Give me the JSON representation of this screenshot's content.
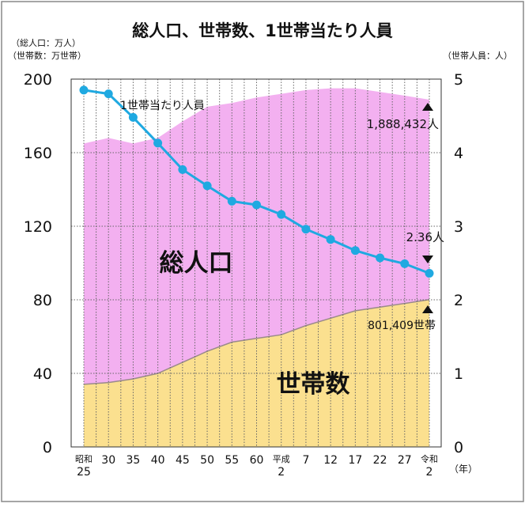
{
  "title": "総人口、世帯数、1世帯当たり人員",
  "colors": {
    "population_fill": "#F3B0F0",
    "households_fill": "#FBE08F",
    "households_line": "#9A8A8A",
    "persons_line": "#1FA9E1",
    "grid": "#666666",
    "frame": "#888888"
  },
  "axes": {
    "left_unit_line1": "（総人口：万人）",
    "left_unit_line2": "（世帯数：万世帯）",
    "right_unit": "（世帯人員：人）",
    "x_unit": "（年）",
    "left_ticks": [
      "0",
      "40",
      "80",
      "120",
      "160",
      "200"
    ],
    "right_ticks": [
      "0",
      "1",
      "2",
      "3",
      "4",
      "5"
    ]
  },
  "labels": {
    "population": "総人口",
    "households": "世帯数",
    "persons_series": "1世帯当たり人員",
    "population_value": "1,888,432人",
    "persons_value": "2.36人",
    "households_value": "801,409世帯"
  },
  "chart_data": {
    "type": "area",
    "title": "総人口、世帯数、1世帯当たり人員",
    "categories": [
      [
        "昭和",
        "25"
      ],
      [
        "30"
      ],
      [
        "35"
      ],
      [
        "40"
      ],
      [
        "45"
      ],
      [
        "50"
      ],
      [
        "55"
      ],
      [
        "60"
      ],
      [
        "平成",
        "2"
      ],
      [
        "7"
      ],
      [
        "12"
      ],
      [
        "17"
      ],
      [
        "22"
      ],
      [
        "27"
      ],
      [
        "令和",
        "2"
      ]
    ],
    "ylim_left": [
      0,
      200
    ],
    "ylim_right": [
      0,
      5
    ],
    "grid": true,
    "series": [
      {
        "name": "総人口",
        "type": "area",
        "axis": "left",
        "values": [
          165,
          168,
          165,
          168,
          177,
          185,
          187,
          190,
          192,
          194,
          195,
          195,
          193,
          191,
          188.8
        ]
      },
      {
        "name": "世帯数",
        "type": "area",
        "axis": "left",
        "values": [
          34,
          35,
          37,
          40,
          46,
          52,
          57,
          59,
          61,
          66,
          70,
          74,
          76,
          78,
          80.1
        ]
      },
      {
        "name": "1世帯当たり人員",
        "type": "line",
        "axis": "right",
        "values": [
          4.85,
          4.8,
          4.48,
          4.13,
          3.77,
          3.55,
          3.34,
          3.29,
          3.16,
          2.96,
          2.82,
          2.67,
          2.57,
          2.49,
          2.36
        ]
      }
    ]
  }
}
